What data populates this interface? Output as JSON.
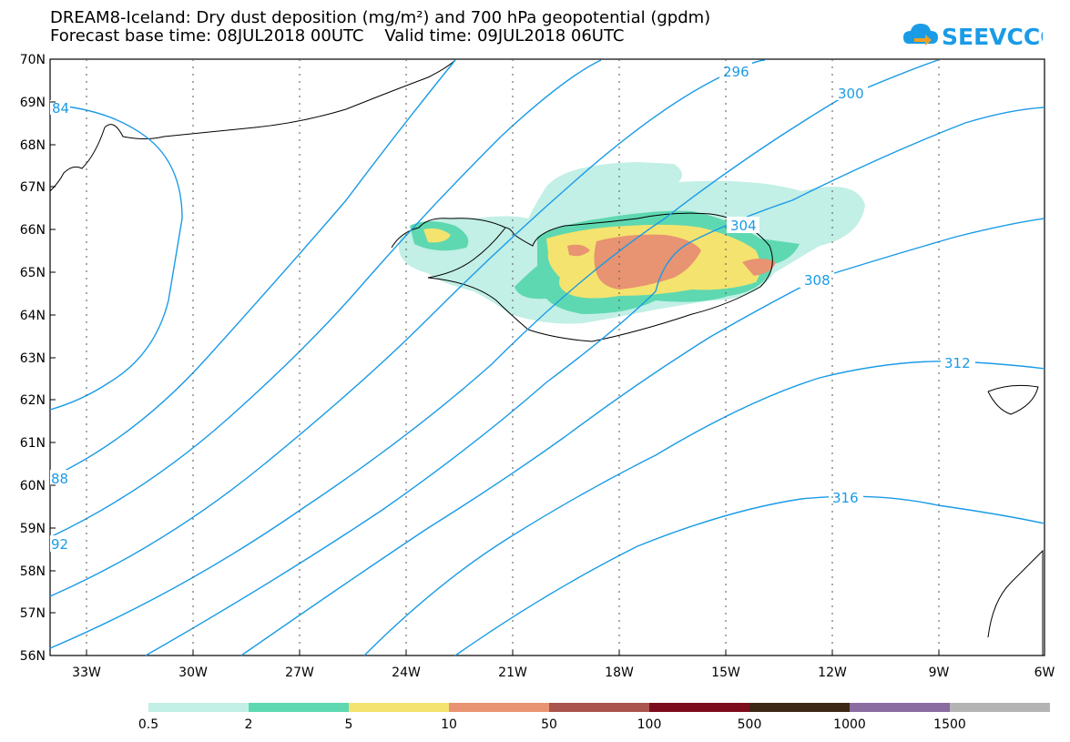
{
  "title": {
    "line1": "DREAM8-Iceland: Dry dust deposition (mg/m²) and 700 hPa geopotential (gpdm)",
    "line2": "Forecast base time: 08JUL2018 00UTC    Valid time: 09JUL2018 06UTC"
  },
  "logo": {
    "text": "SEEVCCC",
    "icon": "cloud-arrow-icon",
    "color": "#1a9be6"
  },
  "map": {
    "lat_labels": [
      "70N",
      "69N",
      "68N",
      "67N",
      "66N",
      "65N",
      "64N",
      "63N",
      "62N",
      "61N",
      "60N",
      "59N",
      "58N",
      "57N",
      "56N"
    ],
    "lon_labels": [
      "33W",
      "30W",
      "27W",
      "24W",
      "21W",
      "18W",
      "15W",
      "12W",
      "9W",
      "6W"
    ],
    "contour_color": "#1a9be6",
    "contour_labels": [
      "84",
      "296",
      "300",
      "304",
      "308",
      "312",
      "316",
      "88",
      "92"
    ]
  },
  "legend": {
    "colors": [
      "#c2efe6",
      "#5ed8b0",
      "#f4e36e",
      "#e89372",
      "#a9544c",
      "#7c0c1c",
      "#3d2817",
      "#8a6ca0",
      "#b4b4b4"
    ],
    "labels": [
      "0.5",
      "2",
      "5",
      "10",
      "50",
      "100",
      "500",
      "1000",
      "1500"
    ]
  }
}
